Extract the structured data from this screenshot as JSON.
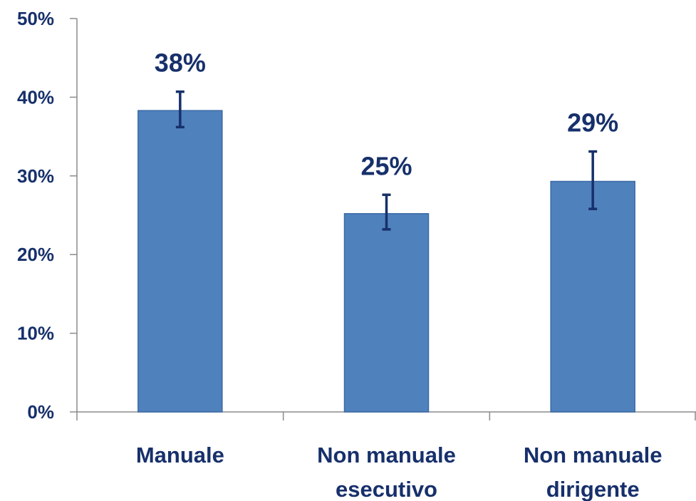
{
  "chart_data": {
    "type": "bar",
    "categories": [
      [
        "Manuale"
      ],
      [
        "Non manuale",
        "esecutivo"
      ],
      [
        "Non manuale",
        "dirigente"
      ]
    ],
    "values": [
      38.3,
      25.2,
      29.3
    ],
    "error_low": [
      36.2,
      23.2,
      25.8
    ],
    "error_high": [
      40.7,
      27.6,
      33.1
    ],
    "data_labels": [
      "38%",
      "25%",
      "29%"
    ],
    "y_ticks": [
      0,
      10,
      20,
      30,
      40,
      50
    ],
    "y_tick_labels": [
      "0%",
      "10%",
      "20%",
      "30%",
      "40%",
      "50%"
    ],
    "ylim": [
      0,
      50
    ],
    "title": "",
    "xlabel": "",
    "ylabel": "",
    "grid": false,
    "legend": "none",
    "colors": {
      "bar_fill": "#4f81bd",
      "bar_stroke": "#3a6aa5",
      "error_bar": "#17306b",
      "text": "#17306b",
      "axis": "#8c8c8c"
    }
  }
}
